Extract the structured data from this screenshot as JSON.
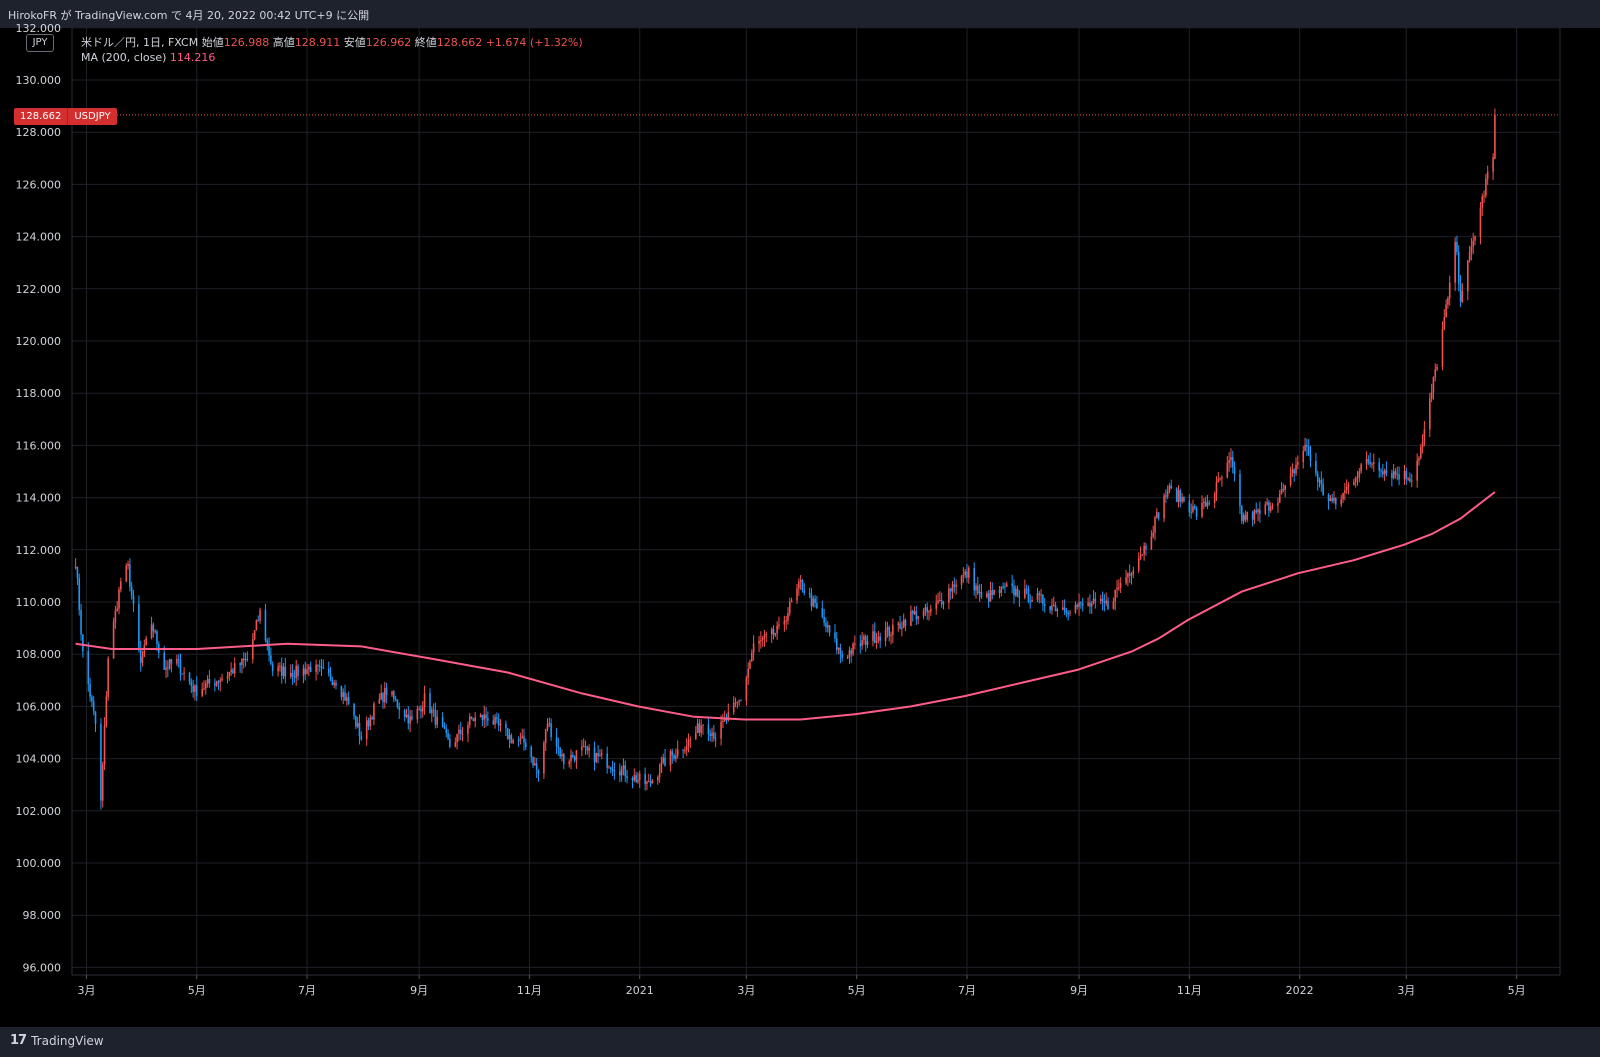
{
  "header": {
    "published": "HirokoFR が TradingView.com で 4月 20, 2022 00:42 UTC+9 に公開"
  },
  "legend": {
    "symbol": "米ドル／円, 1日, FXCM",
    "open_label": "始値",
    "open": "126.988",
    "high_label": "高値",
    "high": "128.911",
    "low_label": "安値",
    "low": "126.962",
    "close_label": "終値",
    "close": "128.662",
    "change": "+1.674 (+1.32%)",
    "ma_label": "MA (200, close)",
    "ma_value": "114.216"
  },
  "currency_label": "JPY",
  "price_tag": {
    "price": "128.662",
    "symbol": "USDJPY"
  },
  "footer": {
    "brand": "TradingView"
  },
  "colors": {
    "up": "#ef5350",
    "down": "#2196f3",
    "ma": "#ff5c8a",
    "background": "#000000",
    "grid": "#1f2128"
  },
  "chart_data": {
    "type": "candlestick",
    "title": "米ドル／円, 1日, FXCM",
    "xlabel": "",
    "ylabel": "",
    "ylim": [
      96,
      132
    ],
    "y_ticks": [
      "132.000",
      "130.000",
      "128.000",
      "126.000",
      "124.000",
      "122.000",
      "120.000",
      "118.000",
      "116.000",
      "114.000",
      "112.000",
      "110.000",
      "108.000",
      "106.000",
      "104.000",
      "102.000",
      "100.000",
      "98.000",
      "96.000"
    ],
    "x_ticks": [
      {
        "label": "3月",
        "date": "2020-03-01"
      },
      {
        "label": "5月",
        "date": "2020-05-01"
      },
      {
        "label": "7月",
        "date": "2020-07-01"
      },
      {
        "label": "9月",
        "date": "2020-09-01"
      },
      {
        "label": "11月",
        "date": "2020-11-01"
      },
      {
        "label": "2021",
        "date": "2021-01-01"
      },
      {
        "label": "3月",
        "date": "2021-03-01"
      },
      {
        "label": "5月",
        "date": "2021-05-01"
      },
      {
        "label": "7月",
        "date": "2021-07-01"
      },
      {
        "label": "9月",
        "date": "2021-09-01"
      },
      {
        "label": "11月",
        "date": "2021-11-01"
      },
      {
        "label": "2022",
        "date": "2022-01-01"
      },
      {
        "label": "3月",
        "date": "2022-03-01"
      },
      {
        "label": "5月",
        "date": "2022-05-01"
      }
    ],
    "x_range": [
      "2020-02-22",
      "2022-05-25"
    ],
    "series": [
      {
        "name": "USDJPY",
        "close_path": [
          [
            "2020-02-24",
            111.6
          ],
          [
            "2020-02-28",
            108.0
          ],
          [
            "2020-03-06",
            105.3
          ],
          [
            "2020-03-09",
            102.3
          ],
          [
            "2020-03-13",
            107.9
          ],
          [
            "2020-03-20",
            110.8
          ],
          [
            "2020-03-24",
            111.3
          ],
          [
            "2020-03-31",
            107.6
          ],
          [
            "2020-04-06",
            109.2
          ],
          [
            "2020-04-13",
            107.5
          ],
          [
            "2020-04-20",
            107.7
          ],
          [
            "2020-04-30",
            106.6
          ],
          [
            "2020-05-15",
            107.1
          ],
          [
            "2020-05-29",
            107.8
          ],
          [
            "2020-06-05",
            109.6
          ],
          [
            "2020-06-12",
            107.4
          ],
          [
            "2020-06-26",
            107.3
          ],
          [
            "2020-07-03",
            107.5
          ],
          [
            "2020-07-17",
            107.0
          ],
          [
            "2020-07-24",
            106.1
          ],
          [
            "2020-07-31",
            104.8
          ],
          [
            "2020-08-07",
            105.9
          ],
          [
            "2020-08-14",
            106.6
          ],
          [
            "2020-08-28",
            105.4
          ],
          [
            "2020-09-04",
            106.3
          ],
          [
            "2020-09-18",
            104.5
          ],
          [
            "2020-09-30",
            105.5
          ],
          [
            "2020-10-09",
            105.6
          ],
          [
            "2020-10-23",
            104.7
          ],
          [
            "2020-10-30",
            104.6
          ],
          [
            "2020-11-06",
            103.4
          ],
          [
            "2020-11-11",
            105.4
          ],
          [
            "2020-11-20",
            103.9
          ],
          [
            "2020-11-30",
            104.3
          ],
          [
            "2020-12-11",
            104.0
          ],
          [
            "2020-12-31",
            103.2
          ],
          [
            "2021-01-06",
            103.0
          ],
          [
            "2021-01-15",
            103.9
          ],
          [
            "2021-01-29",
            104.7
          ],
          [
            "2021-02-05",
            105.4
          ],
          [
            "2021-02-12",
            104.9
          ],
          [
            "2021-02-26",
            106.3
          ],
          [
            "2021-03-05",
            108.3
          ],
          [
            "2021-03-19",
            108.9
          ],
          [
            "2021-03-31",
            110.7
          ],
          [
            "2021-04-09",
            109.7
          ],
          [
            "2021-04-23",
            107.9
          ],
          [
            "2021-05-07",
            108.6
          ],
          [
            "2021-05-21",
            108.9
          ],
          [
            "2021-05-31",
            109.5
          ],
          [
            "2021-06-11",
            109.6
          ],
          [
            "2021-06-25",
            110.8
          ],
          [
            "2021-07-02",
            111.1
          ],
          [
            "2021-07-09",
            110.1
          ],
          [
            "2021-07-23",
            110.5
          ],
          [
            "2021-08-06",
            110.2
          ],
          [
            "2021-08-20",
            109.8
          ],
          [
            "2021-08-27",
            109.8
          ],
          [
            "2021-09-10",
            109.9
          ],
          [
            "2021-09-17",
            109.9
          ],
          [
            "2021-09-24",
            110.7
          ],
          [
            "2021-09-30",
            111.3
          ],
          [
            "2021-10-08",
            112.2
          ],
          [
            "2021-10-20",
            114.3
          ],
          [
            "2021-10-29",
            113.9
          ],
          [
            "2021-11-05",
            113.4
          ],
          [
            "2021-11-12",
            113.9
          ],
          [
            "2021-11-24",
            115.4
          ],
          [
            "2021-11-30",
            113.2
          ],
          [
            "2021-12-10",
            113.4
          ],
          [
            "2021-12-24",
            114.3
          ],
          [
            "2022-01-04",
            116.0
          ],
          [
            "2022-01-14",
            114.2
          ],
          [
            "2022-01-21",
            113.7
          ],
          [
            "2022-02-04",
            115.2
          ],
          [
            "2022-02-11",
            115.4
          ],
          [
            "2022-02-18",
            115.0
          ],
          [
            "2022-03-04",
            114.8
          ],
          [
            "2022-03-10",
            116.1
          ],
          [
            "2022-03-18",
            119.2
          ],
          [
            "2022-03-25",
            122.0
          ],
          [
            "2022-03-28",
            123.9
          ],
          [
            "2022-03-31",
            121.7
          ],
          [
            "2022-04-06",
            123.5
          ],
          [
            "2022-04-12",
            125.4
          ],
          [
            "2022-04-15",
            126.4
          ],
          [
            "2022-04-18",
            127.0
          ],
          [
            "2022-04-19",
            128.662
          ]
        ]
      },
      {
        "name": "MA (200, close)",
        "values": [
          [
            "2020-02-24",
            108.4
          ],
          [
            "2020-03-15",
            108.2
          ],
          [
            "2020-05-01",
            108.2
          ],
          [
            "2020-06-20",
            108.4
          ],
          [
            "2020-07-31",
            108.3
          ],
          [
            "2020-09-10",
            107.8
          ],
          [
            "2020-10-20",
            107.3
          ],
          [
            "2020-11-30",
            106.5
          ],
          [
            "2020-12-31",
            106.0
          ],
          [
            "2021-01-31",
            105.6
          ],
          [
            "2021-02-28",
            105.5
          ],
          [
            "2021-03-31",
            105.5
          ],
          [
            "2021-04-30",
            105.7
          ],
          [
            "2021-05-31",
            106.0
          ],
          [
            "2021-06-30",
            106.4
          ],
          [
            "2021-07-31",
            106.9
          ],
          [
            "2021-08-31",
            107.4
          ],
          [
            "2021-09-30",
            108.1
          ],
          [
            "2021-10-15",
            108.6
          ],
          [
            "2021-10-31",
            109.3
          ],
          [
            "2021-11-30",
            110.4
          ],
          [
            "2021-12-31",
            111.1
          ],
          [
            "2022-01-31",
            111.6
          ],
          [
            "2022-02-28",
            112.2
          ],
          [
            "2022-03-15",
            112.6
          ],
          [
            "2022-03-31",
            113.2
          ],
          [
            "2022-04-19",
            114.216
          ]
        ]
      }
    ],
    "last_bar": {
      "date": "2022-04-19",
      "open": 126.988,
      "high": 128.911,
      "low": 126.962,
      "close": 128.662
    },
    "last_price_line": 128.662,
    "grid": true,
    "ma_period": 200
  }
}
